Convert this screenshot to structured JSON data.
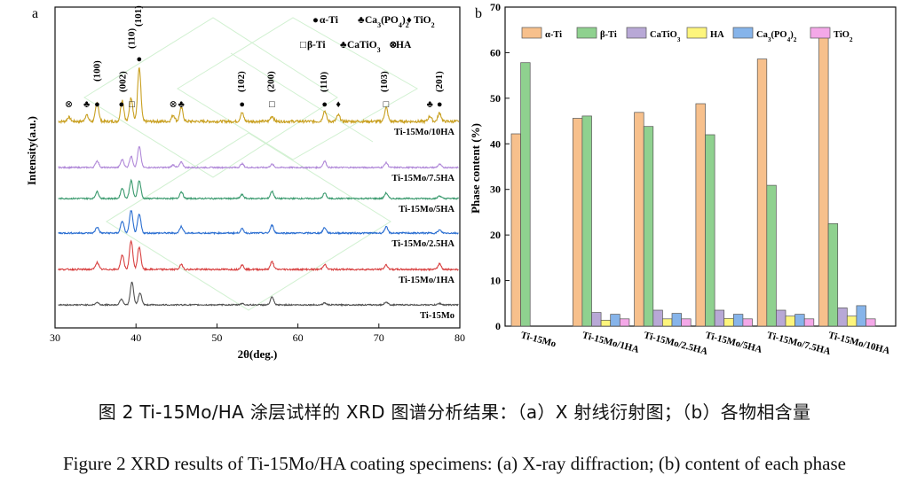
{
  "captions": {
    "cn": "图 2 Ti-15Mo/HA 涂层试样的 XRD 图谱分析结果：（a）X 射线衍射图；（b）各物相含量",
    "en": "Figure 2 XRD results of Ti-15Mo/HA coating specimens: (a) X-ray diffraction; (b) content of each phase"
  },
  "chart_data": [
    {
      "panel": "a",
      "type": "line",
      "xlabel": "2θ(deg.)",
      "ylabel": "Intensity(a.u.)",
      "xlim": [
        30,
        80
      ],
      "xticks": [
        30,
        40,
        50,
        60,
        70,
        80
      ],
      "yticks": "none",
      "legend": [
        {
          "symbol": "●",
          "label": "α-Ti"
        },
        {
          "symbol": "♣",
          "label": "Ca3(PO4)2"
        },
        {
          "symbol": "♦",
          "label": "TiO2"
        },
        {
          "symbol": "□",
          "label": "β-Ti"
        },
        {
          "symbol": "♣",
          "label": "CaTiO3"
        },
        {
          "symbol": "⊗",
          "label": "HA"
        }
      ],
      "peak_labels": [
        {
          "x": 35.2,
          "hkl": "(100)"
        },
        {
          "x": 38.4,
          "hkl": "(002)"
        },
        {
          "x": 39.5,
          "hkl": "(110)"
        },
        {
          "x": 40.3,
          "hkl": "(101)"
        },
        {
          "x": 53.0,
          "hkl": "(102)"
        },
        {
          "x": 56.7,
          "hkl": "(200)"
        },
        {
          "x": 63.2,
          "hkl": "(110)"
        },
        {
          "x": 70.7,
          "hkl": "(103)"
        },
        {
          "x": 77.5,
          "hkl": "(201)"
        }
      ],
      "phase_markers": [
        {
          "x": 31.7,
          "symbol": "⊗"
        },
        {
          "x": 33.9,
          "symbol": "♣"
        },
        {
          "x": 35.2,
          "symbol": "●"
        },
        {
          "x": 38.2,
          "symbol": "●"
        },
        {
          "x": 39.5,
          "symbol": "□"
        },
        {
          "x": 40.4,
          "symbol": "●"
        },
        {
          "x": 44.6,
          "symbol": "⊗"
        },
        {
          "x": 45.6,
          "symbol": "♣"
        },
        {
          "x": 53.1,
          "symbol": "●"
        },
        {
          "x": 56.8,
          "symbol": "□"
        },
        {
          "x": 63.3,
          "symbol": "●"
        },
        {
          "x": 65.0,
          "symbol": "♦"
        },
        {
          "x": 70.9,
          "symbol": "□"
        },
        {
          "x": 76.3,
          "symbol": "♣"
        },
        {
          "x": 77.5,
          "symbol": "●"
        }
      ],
      "series": [
        {
          "name": "Ti-15Mo/10HA",
          "color": "#c9a021",
          "offset": 5,
          "peaks": [
            [
              31.7,
              0.08
            ],
            [
              33.9,
              0.12
            ],
            [
              35.2,
              0.35
            ],
            [
              38.3,
              0.4
            ],
            [
              39.4,
              0.45
            ],
            [
              40.4,
              1.0
            ],
            [
              44.6,
              0.12
            ],
            [
              45.6,
              0.26
            ],
            [
              53.1,
              0.16
            ],
            [
              56.8,
              0.1
            ],
            [
              63.3,
              0.2
            ],
            [
              65.0,
              0.12
            ],
            [
              70.9,
              0.26
            ],
            [
              76.3,
              0.1
            ],
            [
              77.5,
              0.16
            ]
          ]
        },
        {
          "name": "Ti-15Mo/7.5HA",
          "color": "#b088d8",
          "offset": 4,
          "peaks": [
            [
              35.2,
              0.25
            ],
            [
              38.3,
              0.3
            ],
            [
              39.4,
              0.42
            ],
            [
              40.4,
              0.78
            ],
            [
              44.6,
              0.1
            ],
            [
              45.6,
              0.2
            ],
            [
              53.1,
              0.14
            ],
            [
              56.8,
              0.12
            ],
            [
              63.3,
              0.24
            ],
            [
              70.9,
              0.18
            ],
            [
              77.5,
              0.12
            ]
          ]
        },
        {
          "name": "Ti-15Mo/5HA",
          "color": "#3a9a6e",
          "offset": 3,
          "peaks": [
            [
              35.2,
              0.25
            ],
            [
              38.3,
              0.38
            ],
            [
              39.4,
              0.65
            ],
            [
              40.4,
              0.65
            ],
            [
              45.6,
              0.25
            ],
            [
              53.1,
              0.14
            ],
            [
              56.8,
              0.26
            ],
            [
              63.3,
              0.2
            ],
            [
              70.9,
              0.2
            ],
            [
              77.5,
              0.1
            ]
          ]
        },
        {
          "name": "Ti-15Mo/2.5HA",
          "color": "#2a6ed1",
          "offset": 2,
          "peaks": [
            [
              35.2,
              0.2
            ],
            [
              38.3,
              0.4
            ],
            [
              39.4,
              0.75
            ],
            [
              40.4,
              0.62
            ],
            [
              45.6,
              0.22
            ],
            [
              53.1,
              0.14
            ],
            [
              56.8,
              0.26
            ],
            [
              63.3,
              0.18
            ],
            [
              70.9,
              0.2
            ],
            [
              77.5,
              0.1
            ]
          ]
        },
        {
          "name": "Ti-15Mo/1HA",
          "color": "#d84040",
          "offset": 1,
          "peaks": [
            [
              35.2,
              0.22
            ],
            [
              38.3,
              0.45
            ],
            [
              39.4,
              0.9
            ],
            [
              40.4,
              0.7
            ],
            [
              45.6,
              0.15
            ],
            [
              53.1,
              0.14
            ],
            [
              56.8,
              0.24
            ],
            [
              63.3,
              0.16
            ],
            [
              70.9,
              0.14
            ],
            [
              77.5,
              0.18
            ]
          ]
        },
        {
          "name": "Ti-15Mo",
          "color": "#505050",
          "offset": 0,
          "peaks": [
            [
              35.2,
              0.1
            ],
            [
              38.2,
              0.25
            ],
            [
              39.5,
              0.95
            ],
            [
              40.5,
              0.5
            ],
            [
              53.1,
              0.06
            ],
            [
              56.8,
              0.32
            ],
            [
              63.3,
              0.08
            ],
            [
              70.9,
              0.12
            ],
            [
              77.5,
              0.06
            ]
          ]
        }
      ]
    },
    {
      "panel": "b",
      "type": "bar",
      "ylabel": "Phase content (%)",
      "xlabel": "",
      "ylim": [
        0,
        70
      ],
      "yticks": [
        0,
        10,
        20,
        30,
        40,
        50,
        60,
        70
      ],
      "categories": [
        "Ti-15Mo",
        "Ti-15Mo/1HA",
        "Ti-15Mo/2.5HA",
        "Ti-15Mo/5HA",
        "Ti-15Mo/7.5HA",
        "Ti-15Mo/10HA"
      ],
      "series": [
        {
          "name": "α-Ti",
          "color": "#f7c08c",
          "values": [
            42.2,
            45.6,
            46.9,
            48.8,
            58.6,
            65.5
          ]
        },
        {
          "name": "β-Ti",
          "color": "#8fd18f",
          "values": [
            57.8,
            46.1,
            43.8,
            42.0,
            30.9,
            22.5
          ]
        },
        {
          "name": "CaTiO3",
          "color": "#b8a8d6",
          "values": [
            0,
            3.0,
            3.5,
            3.5,
            3.5,
            4.0
          ]
        },
        {
          "name": "HA",
          "color": "#fdf57c",
          "values": [
            0,
            1.3,
            1.6,
            1.7,
            2.2,
            2.2
          ]
        },
        {
          "name": "Ca3(PO4)2",
          "color": "#86b4ea",
          "values": [
            0,
            2.6,
            2.8,
            2.6,
            2.6,
            4.5
          ]
        },
        {
          "name": "TiO2",
          "color": "#f4a8e8",
          "values": [
            0,
            1.6,
            1.6,
            1.6,
            1.6,
            1.6
          ]
        }
      ]
    }
  ]
}
